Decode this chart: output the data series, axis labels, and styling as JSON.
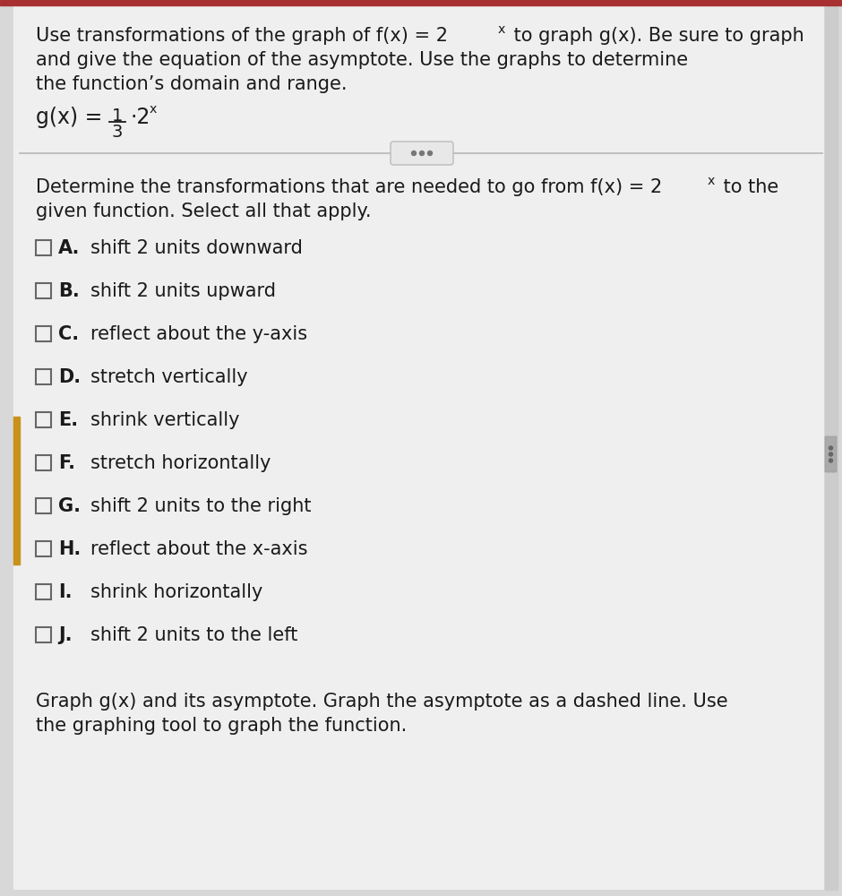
{
  "bg_color": "#d8d8d8",
  "paper_bg": "#efefef",
  "header_bg": "#a83030",
  "text_color": "#1a1a1a",
  "checkbox_color": "#666666",
  "line_color": "#bbbbbb",
  "sidebar_color": "#c8921a",
  "title_line1": "Use transformations of the graph of f(x) = 2",
  "title_line1_sup": "x",
  "title_line1_rest": " to graph g(x). Be sure to graph",
  "title_line2": "and give the equation of the asymptote. Use the graphs to determine",
  "title_line3": "the function’s domain and range.",
  "sec2_line1": "Determine the transformations that are needed to go from f(x) = 2",
  "sec2_line1_sup": "x",
  "sec2_line1_rest": " to the",
  "sec2_line2": "given function. Select all that apply.",
  "options": [
    {
      "label": "A.",
      "text": "shift 2 units downward"
    },
    {
      "label": "B.",
      "text": "shift 2 units upward"
    },
    {
      "label": "C.",
      "text": "reflect about the y-axis"
    },
    {
      "label": "D.",
      "text": "stretch vertically"
    },
    {
      "label": "E.",
      "text": "shrink vertically"
    },
    {
      "label": "F.",
      "text": "stretch horizontally"
    },
    {
      "label": "G.",
      "text": "shift 2 units to the right"
    },
    {
      "label": "H.",
      "text": "reflect about the x-axis"
    },
    {
      "label": "I.",
      "text": "shrink horizontally"
    },
    {
      "label": "J.",
      "text": "shift 2 units to the left"
    }
  ],
  "footer_line1": "Graph g(x) and its asymptote. Graph the asymptote as a dashed line. Use",
  "footer_line2": "the graphing tool to graph the function.",
  "font_size": 15.0,
  "option_font_size": 15.0
}
